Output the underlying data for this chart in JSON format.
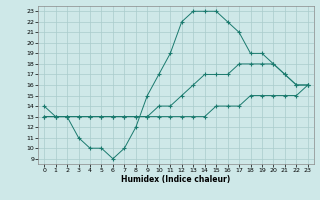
{
  "title": "",
  "xlabel": "Humidex (Indice chaleur)",
  "ylabel": "",
  "background_color": "#cee8e8",
  "line_color": "#1a7a6e",
  "grid_color": "#aacccc",
  "xlim": [
    -0.5,
    23.5
  ],
  "ylim": [
    8.5,
    23.5
  ],
  "xticks": [
    0,
    1,
    2,
    3,
    4,
    5,
    6,
    7,
    8,
    9,
    10,
    11,
    12,
    13,
    14,
    15,
    16,
    17,
    18,
    19,
    20,
    21,
    22,
    23
  ],
  "yticks": [
    9,
    10,
    11,
    12,
    13,
    14,
    15,
    16,
    17,
    18,
    19,
    20,
    21,
    22,
    23
  ],
  "line1_x": [
    0,
    1,
    2,
    3,
    4,
    5,
    6,
    7,
    8,
    9,
    10,
    11,
    12,
    13,
    14,
    15,
    16,
    17,
    18,
    19,
    20,
    21,
    22,
    23
  ],
  "line1_y": [
    14,
    13,
    13,
    11,
    10,
    10,
    9,
    10,
    12,
    15,
    17,
    19,
    22,
    23,
    23,
    23,
    22,
    21,
    19,
    19,
    18,
    17,
    16,
    16
  ],
  "line2_x": [
    0,
    1,
    2,
    3,
    4,
    5,
    6,
    7,
    8,
    9,
    10,
    11,
    12,
    13,
    14,
    15,
    16,
    17,
    18,
    19,
    20,
    21,
    22,
    23
  ],
  "line2_y": [
    13,
    13,
    13,
    13,
    13,
    13,
    13,
    13,
    13,
    13,
    14,
    14,
    15,
    16,
    17,
    17,
    17,
    18,
    18,
    18,
    18,
    17,
    16,
    16
  ],
  "line3_x": [
    0,
    1,
    2,
    3,
    4,
    5,
    6,
    7,
    8,
    9,
    10,
    11,
    12,
    13,
    14,
    15,
    16,
    17,
    18,
    19,
    20,
    21,
    22,
    23
  ],
  "line3_y": [
    13,
    13,
    13,
    13,
    13,
    13,
    13,
    13,
    13,
    13,
    13,
    13,
    13,
    13,
    13,
    14,
    14,
    14,
    15,
    15,
    15,
    15,
    15,
    16
  ]
}
